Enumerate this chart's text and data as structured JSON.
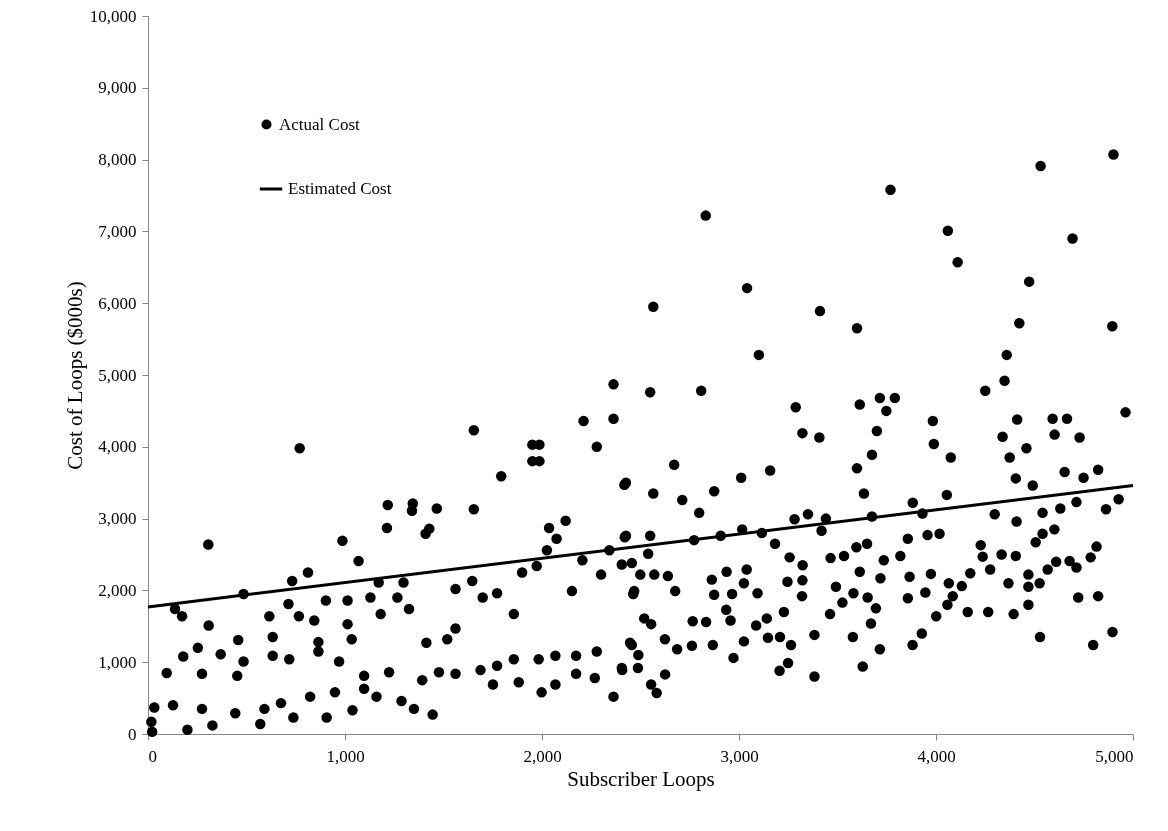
{
  "chart_data": {
    "type": "scatter",
    "xlabel": "Subscriber Loops",
    "ylabel": "Cost of Loops ($000s)",
    "xlim": [
      0,
      5000
    ],
    "ylim": [
      0,
      10000
    ],
    "xticks": [
      0,
      {
        "value": 1000,
        "label": "1,000"
      },
      {
        "value": 2000,
        "label": "2,000"
      },
      {
        "value": 3000,
        "label": "3,000"
      },
      {
        "value": 4000,
        "label": "4,000"
      },
      {
        "value": 5000,
        "label": "5,000"
      }
    ],
    "yticks": [
      0,
      {
        "value": 1000,
        "label": "1,000"
      },
      {
        "value": 2000,
        "label": "2,000"
      },
      {
        "value": 3000,
        "label": "3,000"
      },
      {
        "value": 4000,
        "label": "4,000"
      },
      {
        "value": 5000,
        "label": "5,000"
      },
      {
        "value": 6000,
        "label": "6,000"
      },
      {
        "value": 7000,
        "label": "7,000"
      },
      {
        "value": 8000,
        "label": "8,000"
      },
      {
        "value": 9000,
        "label": "9,000"
      },
      {
        "value": 10000,
        "label": "10,000"
      }
    ],
    "grid": false,
    "legend": "top left",
    "series": [
      {
        "name": "Actual Cost",
        "marker": "circle",
        "color": "#000000",
        "x": [
          770,
          306,
          2363,
          2363,
          2211,
          1654,
          1951,
          1987,
          1951,
          1987,
          2278,
          1793,
          2426,
          1217,
          1344,
          1340,
          1466,
          1213,
          1654,
          987,
          1069,
          1409,
          1428,
          2120,
          2036,
          2074,
          812,
          732,
          485,
          308,
          173,
          137,
          95,
          179,
          253,
          369,
          458,
          616,
          633,
          713,
          766,
          844,
          865,
          903,
          1013,
          1013,
          1034,
          1129,
          1181,
          1266,
          1325,
          1297,
          1171,
          1561,
          1646,
          1561,
          1699,
          1772,
          1857,
          1899,
          1973,
          2025,
          2152,
          2205,
          2300,
          2342,
          2426,
          2468,
          2405,
          2363,
          1998,
          1445,
          1350,
          1882,
          1751,
          2268,
          2405,
          21,
          32,
          17,
          127,
          200,
          327,
          274,
          443,
          570,
          591,
          675,
          738,
          823,
          907,
          949,
          1038,
          1097,
          1160,
          1224,
          1287,
          1392,
          1477,
          1561,
          1688,
          1772,
          1857,
          1983,
          2068,
          2173,
          2278,
          2447,
          2173,
          2068,
          1413,
          1519,
          1097,
          970,
          865,
          717,
          485,
          274,
          453,
          633,
          4901,
          4531,
          3769,
          2831,
          4060,
          4693,
          4110,
          4473,
          3041,
          2565,
          3411,
          3599,
          4895,
          4423,
          3101,
          4359,
          4348,
          2549,
          2808,
          4250,
          3288,
          3613,
          3715,
          3791,
          3748,
          4962,
          3322,
          3408,
          3700,
          3984,
          4592,
          4665,
          4602,
          4338,
          4729,
          4412,
          3675,
          3989,
          4459,
          4374,
          4075,
          2671,
          3599,
          3158,
          4823,
          4653,
          4749,
          4405,
          2418,
          3011,
          2874,
          2565,
          2712,
          2798,
          4491,
          4055,
          3634,
          3882,
          4298,
          4927,
          4863,
          4713,
          4631,
          4541,
          3931,
          3675,
          3350,
          3282,
          3441,
          3419,
          2420,
          2549,
          2539,
          2772,
          2907,
          3016,
          3116,
          3183,
          4409,
          4506,
          4601,
          4541,
          3957,
          4018,
          3857,
          3596,
          3650,
          3257,
          3533,
          3465,
          3735,
          3819,
          4227,
          4237,
          4333,
          4405,
          4815,
          4785,
          4610,
          4678,
          4713,
          4567,
          4275,
          4174,
          3323,
          3322,
          3246,
          3718,
          3974,
          3866,
          3613,
          2937,
          3039,
          2862,
          2676,
          2639,
          2570,
          2499,
          2456,
          2463,
          3025,
          3094,
          2965,
          2874,
          3320,
          3492,
          3581,
          3653,
          4065,
          4131,
          4085,
          4368,
          4469,
          4526,
          4469,
          3857,
          3946,
          4722,
          4823,
          4469,
          4394,
          4265,
          4161,
          4058,
          4001,
          3695,
          3525,
          3462,
          3578,
          3383,
          3670,
          3715,
          3881,
          3928,
          4528,
          4798,
          4896,
          3628,
          3383,
          3206,
          3249,
          2972,
          3208,
          3264,
          3147,
          3087,
          3141,
          3228,
          2935,
          2957,
          3025,
          2582,
          2554,
          2625,
          2487,
          2407,
          2489,
          2456,
          2624,
          2686,
          2765,
          2833,
          2761,
          2867,
          2519,
          2554
        ],
        "values": [
          3980,
          2640,
          4870,
          4390,
          4360,
          4230,
          4030,
          4030,
          3800,
          3800,
          4000,
          3590,
          3500,
          3190,
          3210,
          3110,
          3140,
          2870,
          3130,
          2690,
          2410,
          2790,
          2860,
          2970,
          2870,
          2720,
          2250,
          2130,
          1950,
          1510,
          1640,
          1740,
          850,
          1080,
          1200,
          1110,
          1310,
          1640,
          1350,
          1810,
          1640,
          1580,
          1280,
          1860,
          1530,
          1860,
          1320,
          1900,
          1670,
          1900,
          1740,
          2110,
          2110,
          2020,
          2130,
          1470,
          1900,
          1960,
          1670,
          2250,
          2340,
          2560,
          1990,
          2420,
          2220,
          2560,
          2760,
          1990,
          2360,
          520,
          580,
          270,
          350,
          720,
          690,
          780,
          920,
          30,
          370,
          170,
          400,
          60,
          120,
          350,
          290,
          140,
          350,
          430,
          230,
          520,
          230,
          580,
          330,
          630,
          520,
          860,
          460,
          750,
          860,
          840,
          890,
          950,
          1040,
          1040,
          1090,
          1090,
          1150,
          1270,
          840,
          690,
          1270,
          1320,
          810,
          1010,
          1150,
          1040,
          1010,
          840,
          810,
          1090,
          8070,
          7910,
          7580,
          7220,
          7010,
          6900,
          6570,
          6300,
          6210,
          5950,
          5890,
          5650,
          5680,
          5720,
          5280,
          5280,
          4920,
          4760,
          4780,
          4780,
          4550,
          4590,
          4680,
          4680,
          4500,
          4480,
          4190,
          4130,
          4220,
          4360,
          4390,
          4390,
          4170,
          4140,
          4130,
          4380,
          3890,
          4040,
          3980,
          3850,
          3850,
          3750,
          3700,
          3670,
          3680,
          3650,
          3570,
          3560,
          3470,
          3570,
          3380,
          3350,
          3260,
          3080,
          3460,
          3330,
          3350,
          3220,
          3060,
          3270,
          3130,
          3230,
          3140,
          3080,
          3070,
          3030,
          3060,
          2990,
          3000,
          2830,
          2740,
          2760,
          2510,
          2700,
          2760,
          2850,
          2800,
          2650,
          2960,
          2670,
          2850,
          2790,
          2770,
          2790,
          2720,
          2600,
          2650,
          2460,
          2480,
          2450,
          2420,
          2480,
          2630,
          2470,
          2500,
          2480,
          2610,
          2460,
          2400,
          2410,
          2320,
          2290,
          2290,
          2240,
          2350,
          2140,
          2120,
          2170,
          2230,
          2190,
          2260,
          2260,
          2290,
          2150,
          1990,
          2200,
          2220,
          2220,
          2380,
          1950,
          2100,
          1960,
          1950,
          1940,
          1920,
          2050,
          1960,
          1900,
          2100,
          2060,
          1920,
          2100,
          2050,
          2100,
          2220,
          1890,
          1970,
          1900,
          1920,
          1800,
          1670,
          1700,
          1700,
          1800,
          1640,
          1750,
          1830,
          1670,
          1350,
          1380,
          1540,
          1180,
          1240,
          1400,
          1350,
          1240,
          1420,
          940,
          800,
          880,
          990,
          1060,
          1350,
          1240,
          1340,
          1510,
          1610,
          1700,
          1730,
          1580,
          1290,
          570,
          690,
          830,
          920,
          890,
          1100,
          1240,
          1320,
          1180,
          1570,
          1560,
          1230,
          1240,
          1610,
          1530
        ]
      },
      {
        "name": "Estimated Cost",
        "type": "line",
        "color": "#000000",
        "x": [
          0,
          5000
        ],
        "values": [
          1770,
          3460
        ]
      }
    ]
  }
}
